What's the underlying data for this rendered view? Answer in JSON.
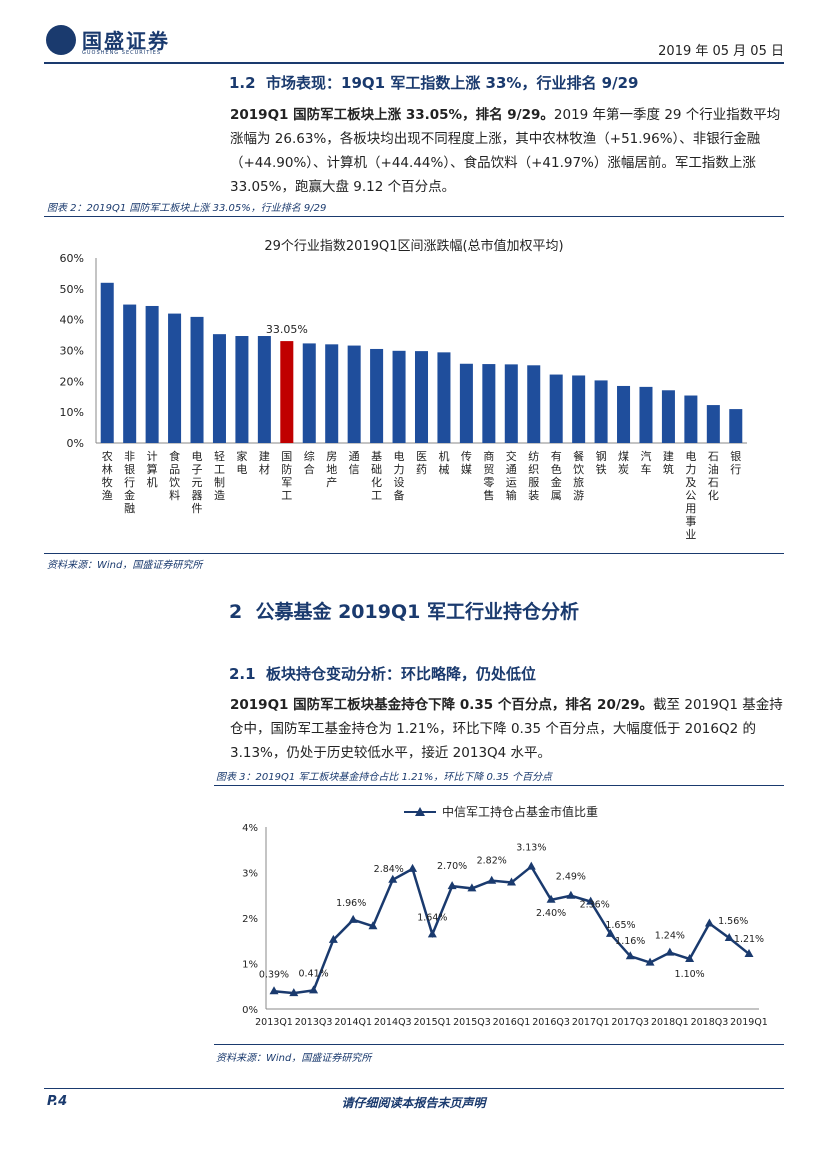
{
  "header": {
    "logo_text": "国盛证券",
    "logo_subtext": "GUOSHENG SECURITIES",
    "date": "2019 年 05 月 05 日"
  },
  "section_1_2": {
    "number": "1.2",
    "title": "市场表现：19Q1 军工指数上涨 33%，行业排名 9/29",
    "para_bold": "2019Q1 国防军工板块上涨 33.05%，排名 9/29。",
    "para_text": "2019 年第一季度 29 个行业指数平均涨幅为 26.63%，各板块均出现不同程度上涨，其中农林牧渔（+51.96%）、非银行金融（+44.90%）、计算机（+44.44%）、食品饮料（+41.97%）涨幅居前。军工指数上涨 33.05%，跑赢大盘 9.12 个百分点。"
  },
  "figure_2": {
    "caption": "图表 2：2019Q1 国防军工板块上涨 33.05%，行业排名 9/29",
    "source": "资料来源：Wind，国盛证券研究所"
  },
  "section_2": {
    "number": "2",
    "title": "公募基金 2019Q1 军工行业持仓分析"
  },
  "section_2_1": {
    "number": "2.1",
    "title": "板块持仓变动分析：环比略降，仍处低位",
    "para_bold": "2019Q1 国防军工板块基金持仓下降 0.35 个百分点，排名 20/29。",
    "para_text": "截至 2019Q1 基金持仓中，国防军工基金持仓为 1.21%，环比下降 0.35 个百分点，大幅度低于 2016Q2 的 3.13%，仍处于历史较低水平，接近 2013Q4 水平。"
  },
  "figure_3": {
    "caption": "图表 3：2019Q1 军工板块基金持仓占比 1.21%，环比下降 0.35 个百分点",
    "source": "资料来源：Wind，国盛证券研究所"
  },
  "footer": {
    "page": "P.4",
    "disclaimer": "请仔细阅读本报告末页声明"
  },
  "colors": {
    "primary": "#1a3a6e",
    "bar": "#1f4e9c",
    "highlight": "#c00000"
  },
  "chart_data": [
    {
      "type": "bar",
      "title": "29个行业指数2019Q1区间涨跌幅(总市值加权平均)",
      "categories": [
        "农林牧渔",
        "非银行金融",
        "计算机",
        "食品饮料",
        "电子元器件",
        "轻工制造",
        "家电",
        "建材",
        "国防军工",
        "综合",
        "房地产",
        "通信",
        "基础化工",
        "电力设备",
        "医药",
        "机械",
        "传媒",
        "商贸零售",
        "交通运输",
        "纺织服装",
        "有色金属",
        "餐饮旅游",
        "钢铁",
        "煤炭",
        "汽车",
        "建筑",
        "电力及公用事业",
        "石油石化",
        "银行"
      ],
      "values": [
        51.96,
        44.9,
        44.44,
        41.97,
        40.9,
        35.3,
        34.7,
        34.7,
        33.05,
        32.3,
        32.0,
        31.6,
        30.5,
        29.9,
        29.8,
        29.4,
        25.7,
        25.6,
        25.5,
        25.2,
        22.2,
        21.9,
        20.3,
        18.5,
        18.2,
        17.1,
        15.4,
        12.3,
        11.0
      ],
      "highlight_index": 8,
      "data_label": "33.05%",
      "ylim": [
        0,
        60
      ],
      "yticks": [
        "0%",
        "10%",
        "20%",
        "30%",
        "40%",
        "50%",
        "60%"
      ]
    },
    {
      "type": "line",
      "legend": "中信军工持仓占基金市值比重",
      "x": [
        "2013Q1",
        "2013Q2",
        "2013Q3",
        "2013Q4",
        "2014Q1",
        "2014Q2",
        "2014Q3",
        "2014Q4",
        "2015Q1",
        "2015Q2",
        "2015Q3",
        "2015Q4",
        "2016Q1",
        "2016Q2",
        "2016Q3",
        "2016Q4",
        "2017Q1",
        "2017Q2",
        "2017Q3",
        "2017Q4",
        "2018Q1",
        "2018Q2",
        "2018Q3",
        "2018Q4",
        "2019Q1"
      ],
      "xticks": [
        "2013Q1",
        "2013Q3",
        "2014Q1",
        "2014Q3",
        "2015Q1",
        "2015Q3",
        "2016Q1",
        "2016Q3",
        "2017Q1",
        "2017Q3",
        "2018Q1",
        "2018Q3",
        "2019Q1"
      ],
      "values": [
        0.39,
        0.35,
        0.41,
        1.52,
        1.96,
        1.82,
        2.84,
        3.08,
        1.64,
        2.7,
        2.65,
        2.82,
        2.78,
        3.13,
        2.4,
        2.49,
        2.36,
        1.65,
        1.16,
        1.02,
        1.24,
        1.1,
        1.88,
        1.56,
        1.21
      ],
      "labels": {
        "0": "0.39%",
        "2": "0.41%",
        "4": "1.96%",
        "6": "2.84%",
        "8": "1.64%",
        "9": "2.70%",
        "11": "2.82%",
        "13": "3.13%",
        "14": "2.40%",
        "15": "2.49%",
        "16": "2.36%",
        "17": "1.65%",
        "18": "1.16%",
        "20": "1.24%",
        "21": "1.10%",
        "23": "1.56%",
        "24": "1.21%"
      },
      "ylim": [
        0,
        4
      ],
      "yticks": [
        "0%",
        "1%",
        "2%",
        "3%",
        "4%"
      ]
    }
  ]
}
